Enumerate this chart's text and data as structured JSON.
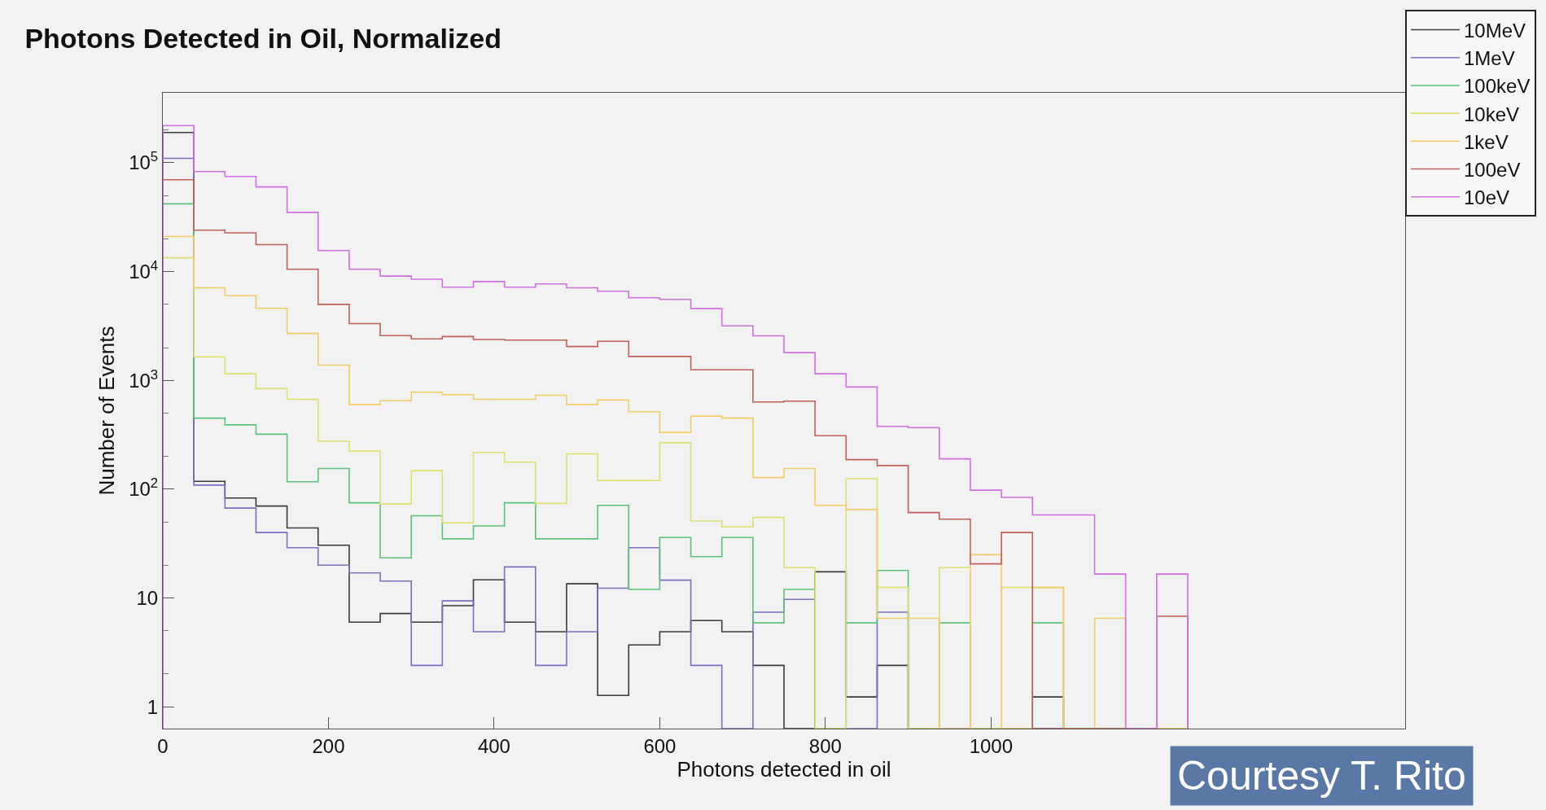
{
  "chart_data": {
    "type": "histogram",
    "title": "Photons Detected in Oil, Normalized",
    "xlabel": "Photons detected in oil",
    "ylabel": "Number of Events",
    "bins": [
      0,
      37.5,
      75,
      112.5,
      150,
      187.5,
      225,
      262.5,
      300,
      337.5,
      375,
      412.5,
      450,
      487.5,
      525,
      562.5,
      600,
      637.5,
      675,
      712.5,
      750,
      787.5,
      825,
      862.5,
      900,
      937.5,
      975,
      1012.5,
      1050,
      1087.5,
      1125,
      1162.5,
      1200,
      1237.5
    ],
    "series": [
      {
        "name": "10MeV",
        "color": "#3a3a3a",
        "values": [
          190000,
          118,
          83,
          70,
          44,
          30.5,
          6,
          7.2,
          6,
          8.5,
          14.7,
          6,
          4.9,
          13.5,
          1.27,
          3.7,
          4.9,
          6.2,
          4.9,
          2.4,
          null,
          17.4,
          1.23,
          2.4,
          null,
          null,
          null,
          null,
          1.23,
          null,
          null,
          null,
          null
        ]
      },
      {
        "name": "1MeV",
        "color": "#7b70c0",
        "values": [
          110000,
          109,
          67,
          40,
          29,
          20,
          17,
          14.3,
          2.4,
          9.4,
          4.9,
          19.3,
          2.4,
          4.9,
          12.3,
          29,
          14.6,
          2.4,
          null,
          7.4,
          9.7,
          null,
          null,
          7.4,
          null,
          null,
          null,
          null,
          null,
          null,
          null,
          null,
          null
        ]
      },
      {
        "name": "100keV",
        "color": "#5cc27a",
        "values": [
          42000,
          450,
          390,
          320,
          117,
          155,
          75,
          23.4,
          57,
          35,
          46,
          75,
          35,
          35,
          71,
          12,
          36,
          24,
          36,
          5.9,
          12,
          null,
          5.9,
          17.9,
          null,
          5.9,
          null,
          null,
          5.9,
          null,
          null,
          null,
          null
        ]
      },
      {
        "name": "10keV",
        "color": "#dde070",
        "values": [
          13400,
          1640,
          1150,
          840,
          670,
          276,
          224,
          73,
          148,
          49,
          218,
          177,
          74,
          211,
          120,
          120,
          267,
          51,
          45,
          55,
          19,
          null,
          125,
          12.5,
          null,
          19,
          null,
          12.5,
          12.5,
          null,
          null,
          null,
          null
        ]
      },
      {
        "name": "1keV",
        "color": "#f3cc6a",
        "values": [
          21000,
          7100,
          6000,
          4600,
          2700,
          1380,
          600,
          650,
          780,
          740,
          670,
          670,
          730,
          600,
          660,
          515,
          333,
          470,
          450,
          128,
          155,
          71,
          65,
          6.5,
          6.5,
          null,
          25,
          null,
          12.5,
          null,
          6.5,
          null,
          null
        ]
      },
      {
        "name": "100eV",
        "color": "#c0605a",
        "values": [
          70000,
          24000,
          22700,
          17700,
          10500,
          5000,
          3330,
          2580,
          2410,
          2530,
          2380,
          2350,
          2350,
          2050,
          2290,
          1660,
          1660,
          1250,
          1250,
          633,
          645,
          310,
          187,
          165,
          61,
          53,
          20.6,
          40,
          null,
          null,
          null,
          null,
          6.8
        ]
      },
      {
        "name": "10eV",
        "color": "#d070e0",
        "values": [
          220000,
          83000,
          75000,
          60000,
          35000,
          15600,
          10500,
          9100,
          8500,
          7200,
          8100,
          7200,
          7700,
          7100,
          6600,
          5750,
          5560,
          4570,
          3170,
          2570,
          1800,
          1150,
          870,
          378,
          368,
          190,
          98,
          84,
          58,
          58,
          16.6,
          null,
          16.6
        ]
      }
    ],
    "xlim": [
      0,
      1500
    ],
    "xticks": [
      0,
      200,
      400,
      600,
      800,
      1000
    ],
    "ylim": [
      0.63,
      440000
    ],
    "yticks": [
      1,
      10,
      {
        "value": 100,
        "label": "10$^{2}$"
      },
      {
        "value": 1000,
        "label": "10$^{3}$"
      },
      {
        "value": 10000,
        "label": "10$^{4}$"
      },
      {
        "value": 100000,
        "label": "10$^{5}$"
      }
    ],
    "log": true,
    "grid": false,
    "legend": "top right",
    "annotations": [
      "Courtesy T. Rito"
    ]
  }
}
